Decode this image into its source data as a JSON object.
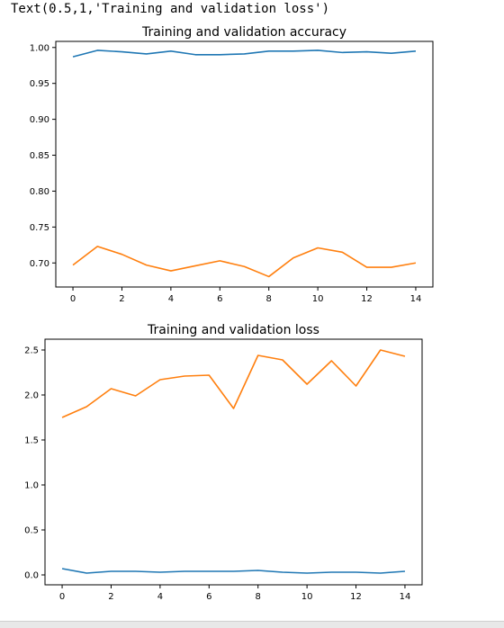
{
  "output_text": "Text(0.5,1,'Training and validation loss')",
  "colors": {
    "training": "#1f77b4",
    "validation": "#ff7f0e"
  },
  "chart_data": [
    {
      "type": "line",
      "title": "Training and validation accuracy",
      "xlabel": "",
      "ylabel": "",
      "x": [
        0,
        1,
        2,
        3,
        4,
        5,
        6,
        7,
        8,
        9,
        10,
        11,
        12,
        13,
        14
      ],
      "xticks": [
        0,
        2,
        4,
        6,
        8,
        10,
        12,
        14
      ],
      "xtick_labels": [
        "0",
        "2",
        "4",
        "6",
        "8",
        "10",
        "12",
        "14"
      ],
      "yticks": [
        0.7,
        0.75,
        0.8,
        0.85,
        0.9,
        0.95,
        1.0
      ],
      "ytick_labels": [
        "0.70",
        "0.75",
        "0.80",
        "0.85",
        "0.90",
        "0.95",
        "1.00"
      ],
      "xlim": [
        -0.7,
        14.7
      ],
      "ylim": [
        0.6665,
        1.0085
      ],
      "grid": false,
      "series": [
        {
          "color": "#1f77b4",
          "values": [
            0.987,
            0.996,
            0.994,
            0.991,
            0.995,
            0.99,
            0.99,
            0.991,
            0.995,
            0.995,
            0.996,
            0.993,
            0.994,
            0.992,
            0.995
          ]
        },
        {
          "color": "#ff7f0e",
          "values": [
            0.697,
            0.723,
            0.712,
            0.697,
            0.689,
            0.696,
            0.703,
            0.695,
            0.681,
            0.707,
            0.721,
            0.715,
            0.694,
            0.694,
            0.7
          ]
        }
      ]
    },
    {
      "type": "line",
      "title": "Training and validation loss",
      "xlabel": "",
      "ylabel": "",
      "x": [
        0,
        1,
        2,
        3,
        4,
        5,
        6,
        7,
        8,
        9,
        10,
        11,
        12,
        13,
        14
      ],
      "xticks": [
        0,
        2,
        4,
        6,
        8,
        10,
        12,
        14
      ],
      "xtick_labels": [
        "0",
        "2",
        "4",
        "6",
        "8",
        "10",
        "12",
        "14"
      ],
      "yticks": [
        0.0,
        0.5,
        1.0,
        1.5,
        2.0,
        2.5
      ],
      "ytick_labels": [
        "0.0",
        "0.5",
        "1.0",
        "1.5",
        "2.0",
        "2.5"
      ],
      "xlim": [
        -0.7,
        14.7
      ],
      "ylim": [
        -0.11,
        2.62
      ],
      "grid": false,
      "series": [
        {
          "color": "#1f77b4",
          "values": [
            0.07,
            0.02,
            0.04,
            0.04,
            0.03,
            0.04,
            0.04,
            0.04,
            0.05,
            0.03,
            0.02,
            0.03,
            0.03,
            0.02,
            0.04
          ]
        },
        {
          "color": "#ff7f0e",
          "values": [
            1.75,
            1.87,
            2.07,
            1.99,
            2.17,
            2.21,
            2.22,
            1.85,
            2.44,
            2.39,
            2.12,
            2.38,
            2.1,
            2.5,
            2.43
          ]
        }
      ]
    }
  ]
}
